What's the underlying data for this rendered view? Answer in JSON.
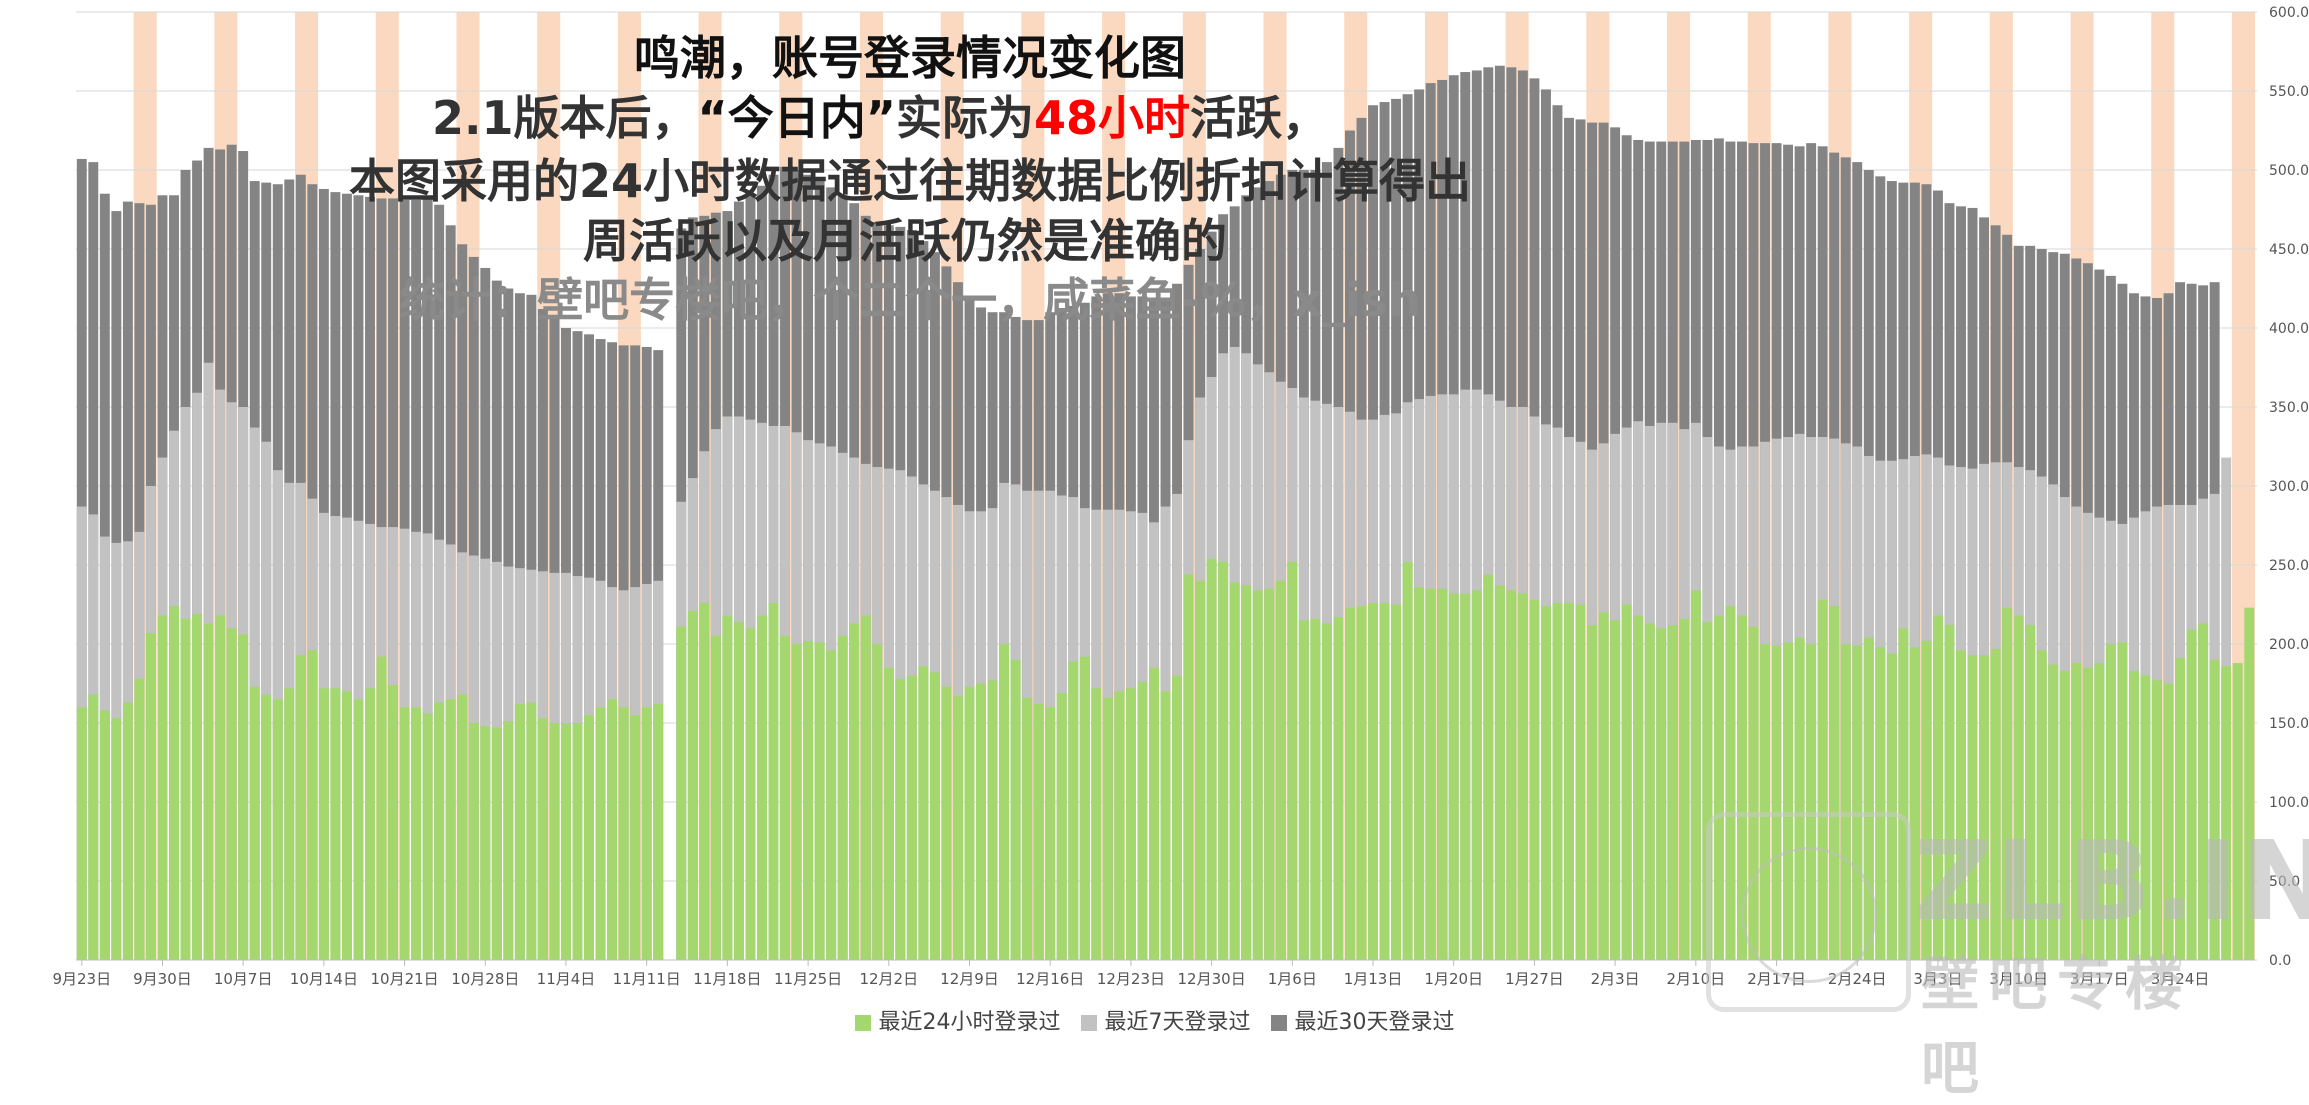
{
  "title": {
    "line1": "鸣潮，账号登录情况变化图",
    "line2_pre": "2.1版本后，",
    "line2_quote": "“今日内”",
    "line2_mid": "实际为",
    "line2_red": "48小时",
    "line2_post": "活跃，",
    "line3": "本图采用的24小时数据通过往期数据比例折扣计算得出",
    "line4": "周活跃以及月活跃仍然是准确的",
    "line5": "统计：壁吧专楼吧，个二个一，咸菜鱼-%，x_ish"
  },
  "watermark": {
    "text": "ZLB.INK",
    "sub": "壁吧专楼吧"
  },
  "colors": {
    "d1": "#a4d86e",
    "d7": "#c2c2c2",
    "d30": "#848484",
    "est": "#a8e6e0",
    "holiday": "#fbd9c0",
    "grid": "#d7d7d7"
  },
  "chart_data": {
    "type": "bar",
    "stacked": false,
    "ylim": [
      0,
      600
    ],
    "yticks": [
      "0.0",
      "50.0",
      "100.0",
      "150.0",
      "200.0",
      "250.0",
      "300.0",
      "350.0",
      "400.0",
      "450.0",
      "500.0",
      "550.0",
      "600.0"
    ],
    "y_axis_side": "right",
    "grid": true,
    "legend_position": "bottom",
    "start_date": "2024-09-23",
    "x_tick_labels": [
      "9月23日",
      "9月30日",
      "10月7日",
      "10月14日",
      "10月21日",
      "10月28日",
      "11月4日",
      "11月11日",
      "11月18日",
      "11月25日",
      "12月2日",
      "12月9日",
      "12月16日",
      "12月23日",
      "12月30日",
      "1月6日",
      "1月13日",
      "1月20日",
      "1月27日",
      "2月3日",
      "2月10日",
      "2月17日",
      "2月24日",
      "3月3日",
      "3月10日",
      "3月17日",
      "3月24日"
    ],
    "series": [
      {
        "name": "最近24小时登录过",
        "color": "#a4d86e",
        "values": [
          160,
          168,
          158,
          153,
          163,
          178,
          207,
          218,
          224,
          216,
          219,
          213,
          218,
          210,
          206,
          173,
          168,
          165,
          172,
          193,
          196,
          172,
          172,
          170,
          165,
          172,
          192,
          174,
          160,
          160,
          156,
          163,
          165,
          168,
          150,
          148,
          147,
          151,
          162,
          163,
          153,
          150,
          150,
          150,
          155,
          160,
          165,
          160,
          155,
          160,
          162,
          null,
          211,
          221,
          226,
          205,
          218,
          214,
          210,
          218,
          226,
          205,
          200,
          202,
          201,
          196,
          205,
          213,
          218,
          200,
          185,
          178,
          180,
          186,
          182,
          173,
          167,
          173,
          175,
          177,
          200,
          190,
          166,
          162,
          160,
          169,
          189,
          192,
          172,
          166,
          170,
          172,
          176,
          185,
          170,
          180,
          244,
          240,
          254,
          252,
          239,
          237,
          234,
          235,
          240,
          252,
          215,
          216,
          213,
          217,
          223,
          224,
          226,
          226,
          225,
          252,
          236,
          235,
          235,
          232,
          232,
          234,
          244,
          237,
          234,
          232,
          228,
          224,
          226,
          226,
          225,
          212,
          220,
          215,
          225,
          218,
          213,
          210,
          212,
          216,
          234,
          214,
          218,
          224,
          218,
          211,
          200,
          199,
          201,
          204,
          200,
          228,
          224,
          200,
          199,
          204,
          198,
          194,
          210,
          198,
          202,
          218,
          212,
          196,
          193,
          193,
          197,
          223,
          218,
          212,
          196,
          187,
          183,
          188,
          185,
          188,
          200,
          201,
          183,
          180,
          177,
          175,
          191,
          209,
          213,
          190,
          186,
          188,
          223
        ]
      },
      {
        "name": "最近7天登录过",
        "color": "#c2c2c2",
        "values": [
          287,
          282,
          268,
          264,
          265,
          271,
          300,
          318,
          335,
          350,
          359,
          378,
          361,
          353,
          350,
          337,
          328,
          310,
          302,
          302,
          292,
          283,
          281,
          280,
          278,
          276,
          274,
          274,
          273,
          271,
          270,
          266,
          263,
          258,
          256,
          254,
          252,
          249,
          248,
          247,
          246,
          245,
          245,
          243,
          242,
          240,
          236,
          234,
          236,
          238,
          240,
          null,
          290,
          305,
          322,
          336,
          344,
          344,
          342,
          340,
          338,
          338,
          334,
          329,
          327,
          325,
          321,
          318,
          314,
          312,
          311,
          310,
          306,
          301,
          297,
          293,
          288,
          284,
          284,
          286,
          302,
          301,
          297,
          297,
          297,
          294,
          293,
          286,
          285,
          285,
          285,
          284,
          283,
          277,
          287,
          295,
          329,
          356,
          369,
          384,
          388,
          384,
          377,
          372,
          366,
          362,
          356,
          354,
          352,
          350,
          347,
          342,
          342,
          345,
          346,
          353,
          355,
          357,
          358,
          358,
          361,
          361,
          358,
          354,
          350,
          350,
          344,
          339,
          337,
          331,
          328,
          323,
          327,
          333,
          337,
          341,
          338,
          340,
          340,
          336,
          340,
          331,
          325,
          323,
          325,
          325,
          328,
          330,
          331,
          333,
          331,
          331,
          330,
          327,
          325,
          319,
          316,
          316,
          317,
          319,
          320,
          318,
          313,
          312,
          311,
          314,
          315,
          315,
          312,
          310,
          306,
          301,
          293,
          287,
          283,
          280,
          278,
          276,
          280,
          284,
          287,
          288,
          288,
          288,
          292,
          295,
          318
        ]
      },
      {
        "name": "最近30天登录过",
        "color": "#848484",
        "values": [
          507,
          505,
          485,
          474,
          480,
          479,
          478,
          484,
          484,
          500,
          506,
          514,
          513,
          516,
          512,
          493,
          492,
          491,
          494,
          497,
          491,
          488,
          486,
          485,
          484,
          483,
          482,
          482,
          481,
          481,
          483,
          478,
          465,
          453,
          445,
          438,
          430,
          425,
          422,
          421,
          412,
          406,
          400,
          398,
          396,
          393,
          391,
          389,
          389,
          388,
          386,
          null,
          463,
          470,
          471,
          473,
          474,
          480,
          485,
          490,
          497,
          502,
          500,
          497,
          493,
          489,
          484,
          479,
          471,
          467,
          465,
          464,
          462,
          455,
          448,
          439,
          429,
          420,
          413,
          410,
          410,
          407,
          405,
          405,
          410,
          411,
          414,
          416,
          420,
          422,
          422,
          420,
          420,
          418,
          418,
          428,
          440,
          450,
          461,
          472,
          477,
          484,
          489,
          493,
          497,
          500,
          500,
          500,
          505,
          514,
          525,
          533,
          541,
          543,
          545,
          548,
          551,
          555,
          557,
          560,
          562,
          563,
          565,
          566,
          565,
          563,
          558,
          551,
          541,
          533,
          532,
          530,
          530,
          527,
          522,
          519,
          518,
          518,
          518,
          518,
          519,
          519,
          520,
          518,
          518,
          517,
          517,
          517,
          516,
          515,
          517,
          515,
          511,
          508,
          505,
          500,
          496,
          493,
          492,
          492,
          491,
          487,
          479,
          477,
          476,
          470,
          465,
          459,
          452,
          452,
          450,
          448,
          447,
          444,
          441,
          437,
          433,
          428,
          422,
          420,
          419,
          422,
          429,
          428,
          427,
          429
        ]
      }
    ]
  }
}
